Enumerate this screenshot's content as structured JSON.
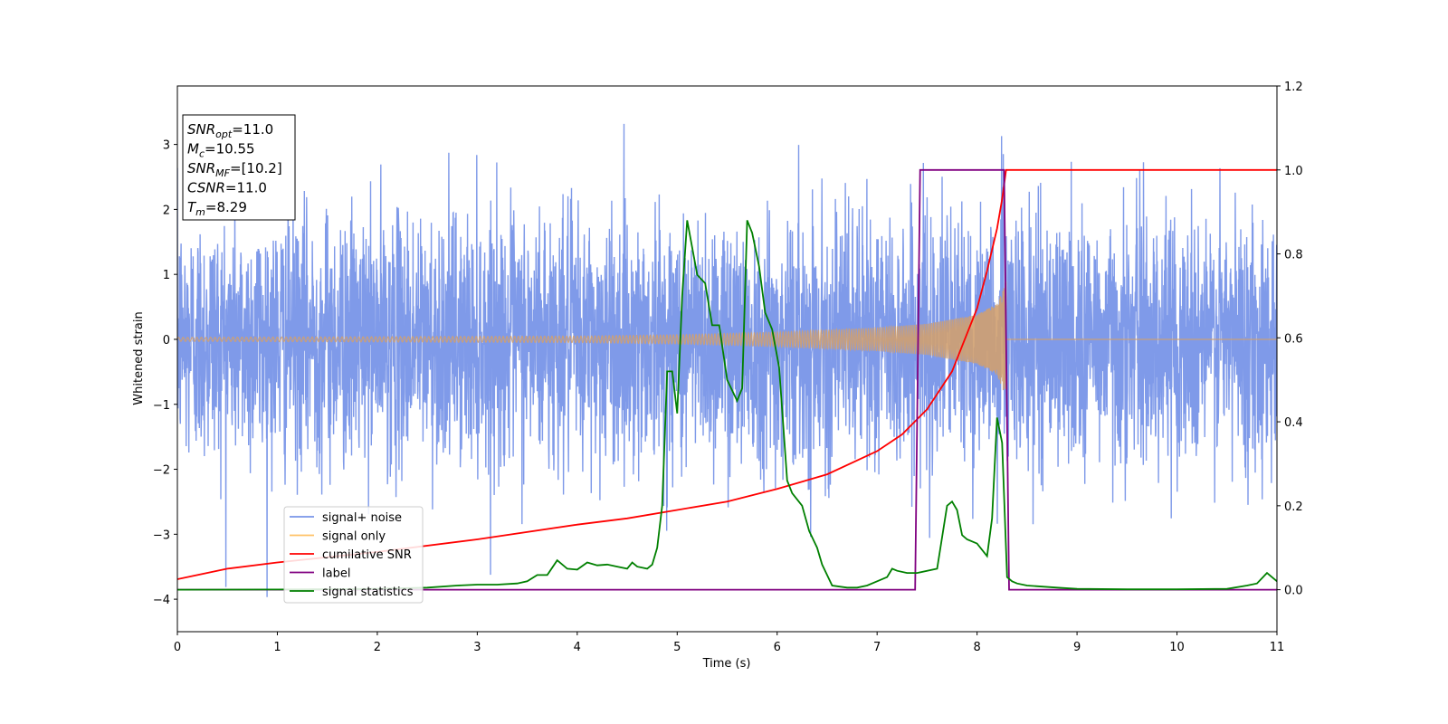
{
  "chart_data": {
    "type": "line",
    "xlabel": "Time (s)",
    "ylabel": "Whitened strain",
    "xlim": [
      0,
      11
    ],
    "ylim_left": [
      -4.5,
      3.9
    ],
    "ylim_right": [
      -0.1,
      1.2
    ],
    "x_ticks": [
      "0",
      "1",
      "2",
      "3",
      "4",
      "5",
      "6",
      "7",
      "8",
      "9",
      "10",
      "11"
    ],
    "y_left_ticks": [
      "−4",
      "−3",
      "−2",
      "−1",
      "0",
      "1",
      "2",
      "3"
    ],
    "y_right_ticks": [
      "0.0",
      "0.2",
      "0.4",
      "0.6",
      "0.8",
      "1.0",
      "1.2"
    ],
    "stats_box": [
      {
        "sym": "SNR",
        "sub": "opt",
        "val": "=11.0"
      },
      {
        "sym": "M",
        "sub": "c",
        "val": "=10.55"
      },
      {
        "sym": "SNR",
        "sub": "MF",
        "val": "=[10.2]"
      },
      {
        "sym": "CSNR",
        "sub": "",
        "val": "=11.0"
      },
      {
        "sym": "T",
        "sub": "m",
        "val": "=8.29"
      }
    ],
    "legend": [
      {
        "label": "signal+ noise",
        "color": "#7895e8"
      },
      {
        "label": "signal only",
        "color": "#ffc266"
      },
      {
        "label": "cumilative SNR",
        "color": "#ff0000"
      },
      {
        "label": "label",
        "color": "#800080"
      },
      {
        "label": "signal statistics",
        "color": "#008000"
      }
    ],
    "series": [
      {
        "name": "signal+ noise",
        "axis": "left",
        "color": "#7895e8",
        "description": "whitened noisy strain, approx. Gaussian noise with sigma 0.95 over 0-11 s, peaks near +3.5 and -4.2"
      },
      {
        "name": "signal only",
        "axis": "left",
        "color": "#d0a070",
        "chirp_envelope": {
          "x": [
            0,
            2,
            4,
            5,
            6,
            7,
            7.5,
            8,
            8.2,
            8.29
          ],
          "y": [
            0.03,
            0.04,
            0.05,
            0.07,
            0.11,
            0.18,
            0.24,
            0.38,
            0.55,
            0.9
          ]
        },
        "merger_time": 8.29
      },
      {
        "name": "cumilative SNR",
        "axis": "right",
        "color": "#ff0000",
        "x": [
          0,
          0.5,
          1,
          2,
          3,
          4,
          4.5,
          5,
          5.5,
          6,
          6.5,
          7,
          7.25,
          7.5,
          7.75,
          8,
          8.1,
          8.2,
          8.25,
          8.29,
          11
        ],
        "y": [
          0.025,
          0.05,
          0.065,
          0.09,
          0.12,
          0.155,
          0.17,
          0.19,
          0.21,
          0.24,
          0.275,
          0.33,
          0.37,
          0.43,
          0.52,
          0.67,
          0.76,
          0.86,
          0.93,
          1.0,
          1.0
        ]
      },
      {
        "name": "label",
        "axis": "right",
        "color": "#800080",
        "x": [
          0,
          7.38,
          7.43,
          8.27,
          8.32,
          11
        ],
        "y": [
          0,
          0,
          1,
          1,
          0,
          0
        ]
      },
      {
        "name": "signal statistics",
        "axis": "right",
        "color": "#008000",
        "x": [
          0,
          1,
          2,
          2.5,
          2.8,
          3,
          3.2,
          3.4,
          3.5,
          3.6,
          3.7,
          3.8,
          3.9,
          4.0,
          4.1,
          4.2,
          4.3,
          4.4,
          4.5,
          4.55,
          4.6,
          4.7,
          4.75,
          4.8,
          4.85,
          4.9,
          4.95,
          5.0,
          5.05,
          5.1,
          5.2,
          5.28,
          5.35,
          5.42,
          5.5,
          5.6,
          5.65,
          5.7,
          5.75,
          5.82,
          5.88,
          5.95,
          6.02,
          6.1,
          6.15,
          6.25,
          6.32,
          6.4,
          6.45,
          6.55,
          6.7,
          6.8,
          6.9,
          7.0,
          7.1,
          7.15,
          7.2,
          7.3,
          7.4,
          7.6,
          7.7,
          7.75,
          7.8,
          7.85,
          7.9,
          8.0,
          8.1,
          8.15,
          8.2,
          8.25,
          8.3,
          8.35,
          8.4,
          8.5,
          8.8,
          9.0,
          9.5,
          10.0,
          10.5,
          10.7,
          10.8,
          10.9,
          11.0
        ],
        "y": [
          0,
          0.0005,
          0.002,
          0.005,
          0.01,
          0.012,
          0.012,
          0.015,
          0.02,
          0.035,
          0.035,
          0.07,
          0.05,
          0.048,
          0.065,
          0.058,
          0.06,
          0.055,
          0.05,
          0.065,
          0.055,
          0.05,
          0.06,
          0.1,
          0.2,
          0.52,
          0.52,
          0.42,
          0.7,
          0.88,
          0.75,
          0.73,
          0.63,
          0.63,
          0.5,
          0.45,
          0.48,
          0.88,
          0.85,
          0.77,
          0.66,
          0.62,
          0.53,
          0.26,
          0.23,
          0.2,
          0.14,
          0.1,
          0.06,
          0.01,
          0.005,
          0.005,
          0.01,
          0.02,
          0.03,
          0.05,
          0.045,
          0.04,
          0.04,
          0.05,
          0.2,
          0.21,
          0.19,
          0.13,
          0.12,
          0.11,
          0.08,
          0.17,
          0.41,
          0.35,
          0.03,
          0.02,
          0.015,
          0.01,
          0.005,
          0.002,
          0.001,
          0.001,
          0.002,
          0.01,
          0.015,
          0.04,
          0.02
        ]
      }
    ]
  }
}
